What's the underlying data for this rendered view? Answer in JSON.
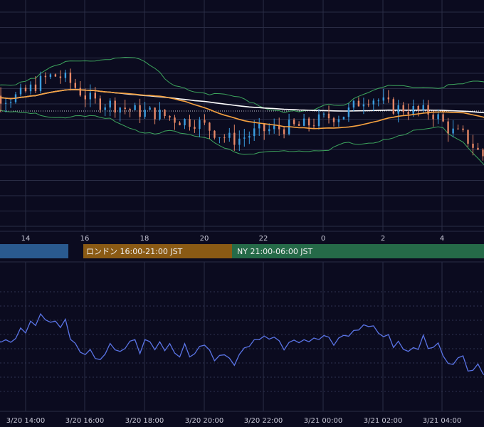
{
  "colors": {
    "background": "#0b0b1f",
    "grid": "#2a2d45",
    "up": "#3a9de0",
    "down": "#e68766",
    "bollinger": "#3da55d",
    "ma_short": "#f7a240",
    "ma_long": "#ffffff",
    "oscillator": "#5a74e6",
    "session_tokyo": "#2a5a8f",
    "session_london": "#8a5a14",
    "session_ny": "#256a48"
  },
  "time_axis": {
    "labels": [
      "14",
      "16",
      "18",
      "20",
      "22",
      "0",
      "2",
      "4"
    ]
  },
  "sessions": [
    {
      "name": "tokyo",
      "label": ""
    },
    {
      "name": "london",
      "label": "ロンドン 16:00-21:00 JST"
    },
    {
      "name": "ny",
      "label": "NY 21:00-06:00 JST"
    }
  ],
  "bottom_axis": {
    "labels": [
      "3/20 14:00",
      "3/20 16:00",
      "3/20 18:00",
      "3/20 20:00",
      "3/20 22:00",
      "3/21 00:00",
      "3/21 02:00",
      "3/21 04:00"
    ]
  },
  "chart_data": [
    {
      "type": "candlestick",
      "title": "",
      "x_range": [
        "3/20 13:00",
        "3/21 05:15"
      ],
      "candle_interval_minutes": 5,
      "shape_keypoints": [
        [
          "3/20 13:00",
          0.6
        ],
        [
          "3/20 13:45",
          0.58
        ],
        [
          "3/20 14:30",
          0.7
        ],
        [
          "3/20 15:15",
          0.55
        ],
        [
          "3/20 16:00",
          0.5
        ],
        [
          "3/20 16:45",
          0.45
        ],
        [
          "3/20 17:30",
          0.35
        ],
        [
          "3/20 18:00",
          0.4
        ],
        [
          "3/20 18:30",
          0.42
        ],
        [
          "3/20 19:15",
          0.48
        ],
        [
          "3/20 19:45",
          0.58
        ],
        [
          "3/20 20:15",
          0.52
        ],
        [
          "3/20 20:45",
          0.5
        ],
        [
          "3/20 21:15",
          0.38
        ],
        [
          "3/20 21:45",
          0.25
        ],
        [
          "3/20 22:00",
          0.05
        ],
        [
          "3/20 22:30",
          0.2
        ],
        [
          "3/20 22:50",
          0.55
        ],
        [
          "3/20 23:20",
          0.7
        ],
        [
          "3/20 23:50",
          0.8
        ],
        [
          "3/21 00:30",
          0.85
        ],
        [
          "3/21 01:00",
          0.72
        ],
        [
          "3/21 01:30",
          0.8
        ],
        [
          "3/21 02:00",
          0.95
        ],
        [
          "3/21 02:30",
          0.6
        ],
        [
          "3/21 03:00",
          0.68
        ],
        [
          "3/21 03:30",
          0.75
        ],
        [
          "3/21 04:00",
          0.65
        ],
        [
          "3/21 04:30",
          0.58
        ],
        [
          "3/21 05:15",
          0.72
        ]
      ],
      "indicators": [
        "Bollinger Bands",
        "Moving Average (short)",
        "Moving Average (long)"
      ]
    },
    {
      "type": "line",
      "title": "",
      "x_range": [
        "3/20 13:00",
        "3/21 05:15"
      ]
    }
  ]
}
